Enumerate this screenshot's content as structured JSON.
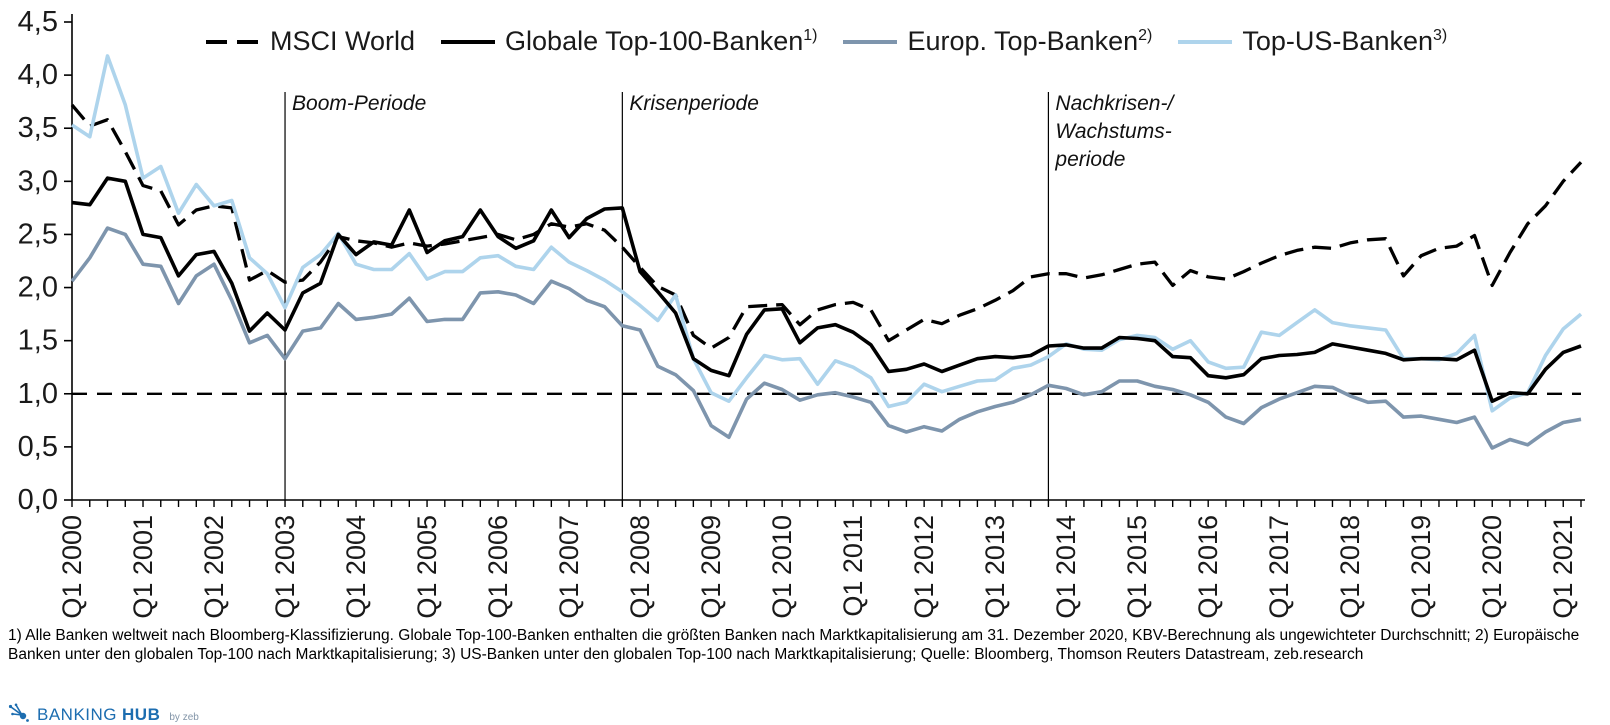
{
  "legend": [
    {
      "label": "MSCI World",
      "sup": "",
      "style": "dashed",
      "color": "#000000"
    },
    {
      "label": "Globale Top-100-Banken",
      "sup": "1)",
      "style": "solid",
      "color": "#000000"
    },
    {
      "label": "Europ. Top-Banken",
      "sup": "2)",
      "style": "solid",
      "color": "#7e95ad"
    },
    {
      "label": "Top-US-Banken",
      "sup": "3)",
      "style": "solid",
      "color": "#aed4ec"
    }
  ],
  "chart_data": {
    "type": "line",
    "title": "",
    "xlabel": "",
    "ylabel": "",
    "x_start_quarter": "Q1 2000",
    "x_end_quarter": "Q2 2021",
    "points_per_series": 86,
    "x_tick_labels": [
      "Q1 2000",
      "Q1 2001",
      "Q1 2002",
      "Q1 2003",
      "Q1 2004",
      "Q1 2005",
      "Q1 2006",
      "Q1 2007",
      "Q1 2008",
      "Q1 2009",
      "Q1 2010",
      "Q1 2011",
      "Q1 2012",
      "Q1 2013",
      "Q1 2014",
      "Q1 2015",
      "Q1 2016",
      "Q1 2017",
      "Q1 2018",
      "Q1 2019",
      "Q1 2020",
      "Q1 2021"
    ],
    "x_label_stride_quarters": 4,
    "y_axis": {
      "min": 0.0,
      "max": 4.5,
      "step": 0.5,
      "tick_labels": [
        "4,5",
        "4,0",
        "3,5",
        "3,0",
        "2,5",
        "2,0",
        "1,5",
        "1,0",
        "0,5",
        "0,0"
      ]
    },
    "grid": false,
    "legend_position": "top",
    "reference_line": {
      "value": 1.0,
      "style": "dashed",
      "color": "#000000"
    },
    "periods": [
      {
        "label_lines": [
          "Boom-Periode"
        ],
        "at_quarter": "Q1 2003",
        "quarter_index": 12
      },
      {
        "label_lines": [
          "Krisenperiode"
        ],
        "at_quarter": "Q4 2007",
        "quarter_index": 31
      },
      {
        "label_lines": [
          "Nachkrisen-/",
          "Wachstums-",
          "periode"
        ],
        "at_quarter": "Q4 2013",
        "quarter_index": 55
      }
    ],
    "series": [
      {
        "name": "MSCI World",
        "color": "#000000",
        "dashed": true,
        "values": [
          3.72,
          3.52,
          3.58,
          3.28,
          2.96,
          2.91,
          2.59,
          2.73,
          2.77,
          2.75,
          2.07,
          2.16,
          2.05,
          2.07,
          2.24,
          2.48,
          2.44,
          2.42,
          2.38,
          2.42,
          2.39,
          2.41,
          2.44,
          2.47,
          2.5,
          2.45,
          2.5,
          2.6,
          2.57,
          2.6,
          2.54,
          2.38,
          2.19,
          2.01,
          1.93,
          1.55,
          1.43,
          1.53,
          1.82,
          1.83,
          1.84,
          1.65,
          1.79,
          1.84,
          1.86,
          1.79,
          1.5,
          1.6,
          1.7,
          1.66,
          1.74,
          1.8,
          1.88,
          1.97,
          2.1,
          2.13,
          2.13,
          2.09,
          2.12,
          2.17,
          2.22,
          2.24,
          2.02,
          2.16,
          2.1,
          2.08,
          2.15,
          2.23,
          2.3,
          2.35,
          2.38,
          2.37,
          2.42,
          2.45,
          2.46,
          2.11,
          2.3,
          2.37,
          2.39,
          2.49,
          2.02,
          2.33,
          2.6,
          2.77,
          3.0,
          3.18
        ]
      },
      {
        "name": "Globale Top-100-Banken",
        "color": "#000000",
        "dashed": false,
        "values": [
          2.8,
          2.78,
          3.03,
          3.0,
          2.5,
          2.47,
          2.11,
          2.31,
          2.34,
          2.04,
          1.59,
          1.76,
          1.6,
          1.95,
          2.04,
          2.5,
          2.31,
          2.43,
          2.4,
          2.73,
          2.33,
          2.44,
          2.48,
          2.73,
          2.48,
          2.37,
          2.44,
          2.73,
          2.47,
          2.65,
          2.74,
          2.75,
          2.15,
          1.96,
          1.76,
          1.33,
          1.22,
          1.17,
          1.56,
          1.79,
          1.8,
          1.48,
          1.62,
          1.65,
          1.58,
          1.46,
          1.21,
          1.23,
          1.28,
          1.21,
          1.27,
          1.33,
          1.35,
          1.34,
          1.36,
          1.45,
          1.46,
          1.43,
          1.43,
          1.53,
          1.52,
          1.5,
          1.35,
          1.34,
          1.17,
          1.15,
          1.18,
          1.33,
          1.36,
          1.37,
          1.39,
          1.47,
          1.44,
          1.41,
          1.38,
          1.32,
          1.33,
          1.33,
          1.32,
          1.41,
          0.93,
          1.01,
          1.0,
          1.23,
          1.39,
          1.45
        ]
      },
      {
        "name": "Europ. Top-Banken",
        "color": "#7e95ad",
        "dashed": false,
        "values": [
          2.06,
          2.28,
          2.56,
          2.5,
          2.22,
          2.2,
          1.85,
          2.11,
          2.22,
          1.88,
          1.48,
          1.55,
          1.33,
          1.59,
          1.62,
          1.85,
          1.7,
          1.72,
          1.75,
          1.9,
          1.68,
          1.7,
          1.7,
          1.95,
          1.96,
          1.93,
          1.85,
          2.06,
          1.99,
          1.88,
          1.82,
          1.64,
          1.6,
          1.26,
          1.18,
          1.03,
          0.7,
          0.59,
          0.95,
          1.1,
          1.04,
          0.94,
          0.99,
          1.01,
          0.97,
          0.92,
          0.7,
          0.64,
          0.69,
          0.65,
          0.76,
          0.83,
          0.88,
          0.92,
          0.99,
          1.08,
          1.05,
          0.99,
          1.02,
          1.12,
          1.12,
          1.07,
          1.04,
          0.99,
          0.92,
          0.78,
          0.72,
          0.87,
          0.95,
          1.01,
          1.07,
          1.06,
          0.98,
          0.92,
          0.93,
          0.78,
          0.79,
          0.76,
          0.73,
          0.78,
          0.49,
          0.57,
          0.52,
          0.64,
          0.73,
          0.76
        ]
      },
      {
        "name": "Top-US-Banken",
        "color": "#aed4ec",
        "dashed": false,
        "values": [
          3.53,
          3.42,
          4.18,
          3.72,
          3.03,
          3.14,
          2.7,
          2.97,
          2.77,
          2.82,
          2.28,
          2.13,
          1.81,
          2.19,
          2.31,
          2.51,
          2.22,
          2.17,
          2.17,
          2.32,
          2.08,
          2.15,
          2.15,
          2.28,
          2.3,
          2.2,
          2.17,
          2.38,
          2.24,
          2.16,
          2.07,
          1.96,
          1.83,
          1.69,
          1.93,
          1.33,
          1.01,
          0.93,
          1.15,
          1.36,
          1.32,
          1.33,
          1.09,
          1.31,
          1.25,
          1.15,
          0.88,
          0.92,
          1.09,
          1.02,
          1.07,
          1.12,
          1.13,
          1.24,
          1.27,
          1.35,
          1.47,
          1.42,
          1.41,
          1.51,
          1.55,
          1.53,
          1.42,
          1.5,
          1.3,
          1.24,
          1.25,
          1.58,
          1.55,
          1.67,
          1.79,
          1.67,
          1.64,
          1.62,
          1.6,
          1.33,
          1.33,
          1.32,
          1.38,
          1.55,
          0.84,
          0.96,
          1.01,
          1.36,
          1.61,
          1.75
        ]
      }
    ]
  },
  "footnote": {
    "text": "1) Alle Banken weltweit nach Bloomberg-Klassifizierung. Globale Top-100-Banken enthalten die größten Banken nach Marktkapitalisierung am 31. Dezember 2020, KBV-Berechnung als ungewichteter Durchschnitt; 2) Europäische Banken unter den globalen Top-100 nach Marktkapitalisierung; 3) US-Banken unter den globalen Top-100 nach Marktkapitalisierung; Quelle: Bloomberg, Thomson Reuters Datastream, zeb.research"
  },
  "logo": {
    "brand_first": "BANKING",
    "brand_second": "HUB",
    "byline": "by zeb",
    "blue": "#1c6db0",
    "byline_gray": "#8395a8"
  }
}
